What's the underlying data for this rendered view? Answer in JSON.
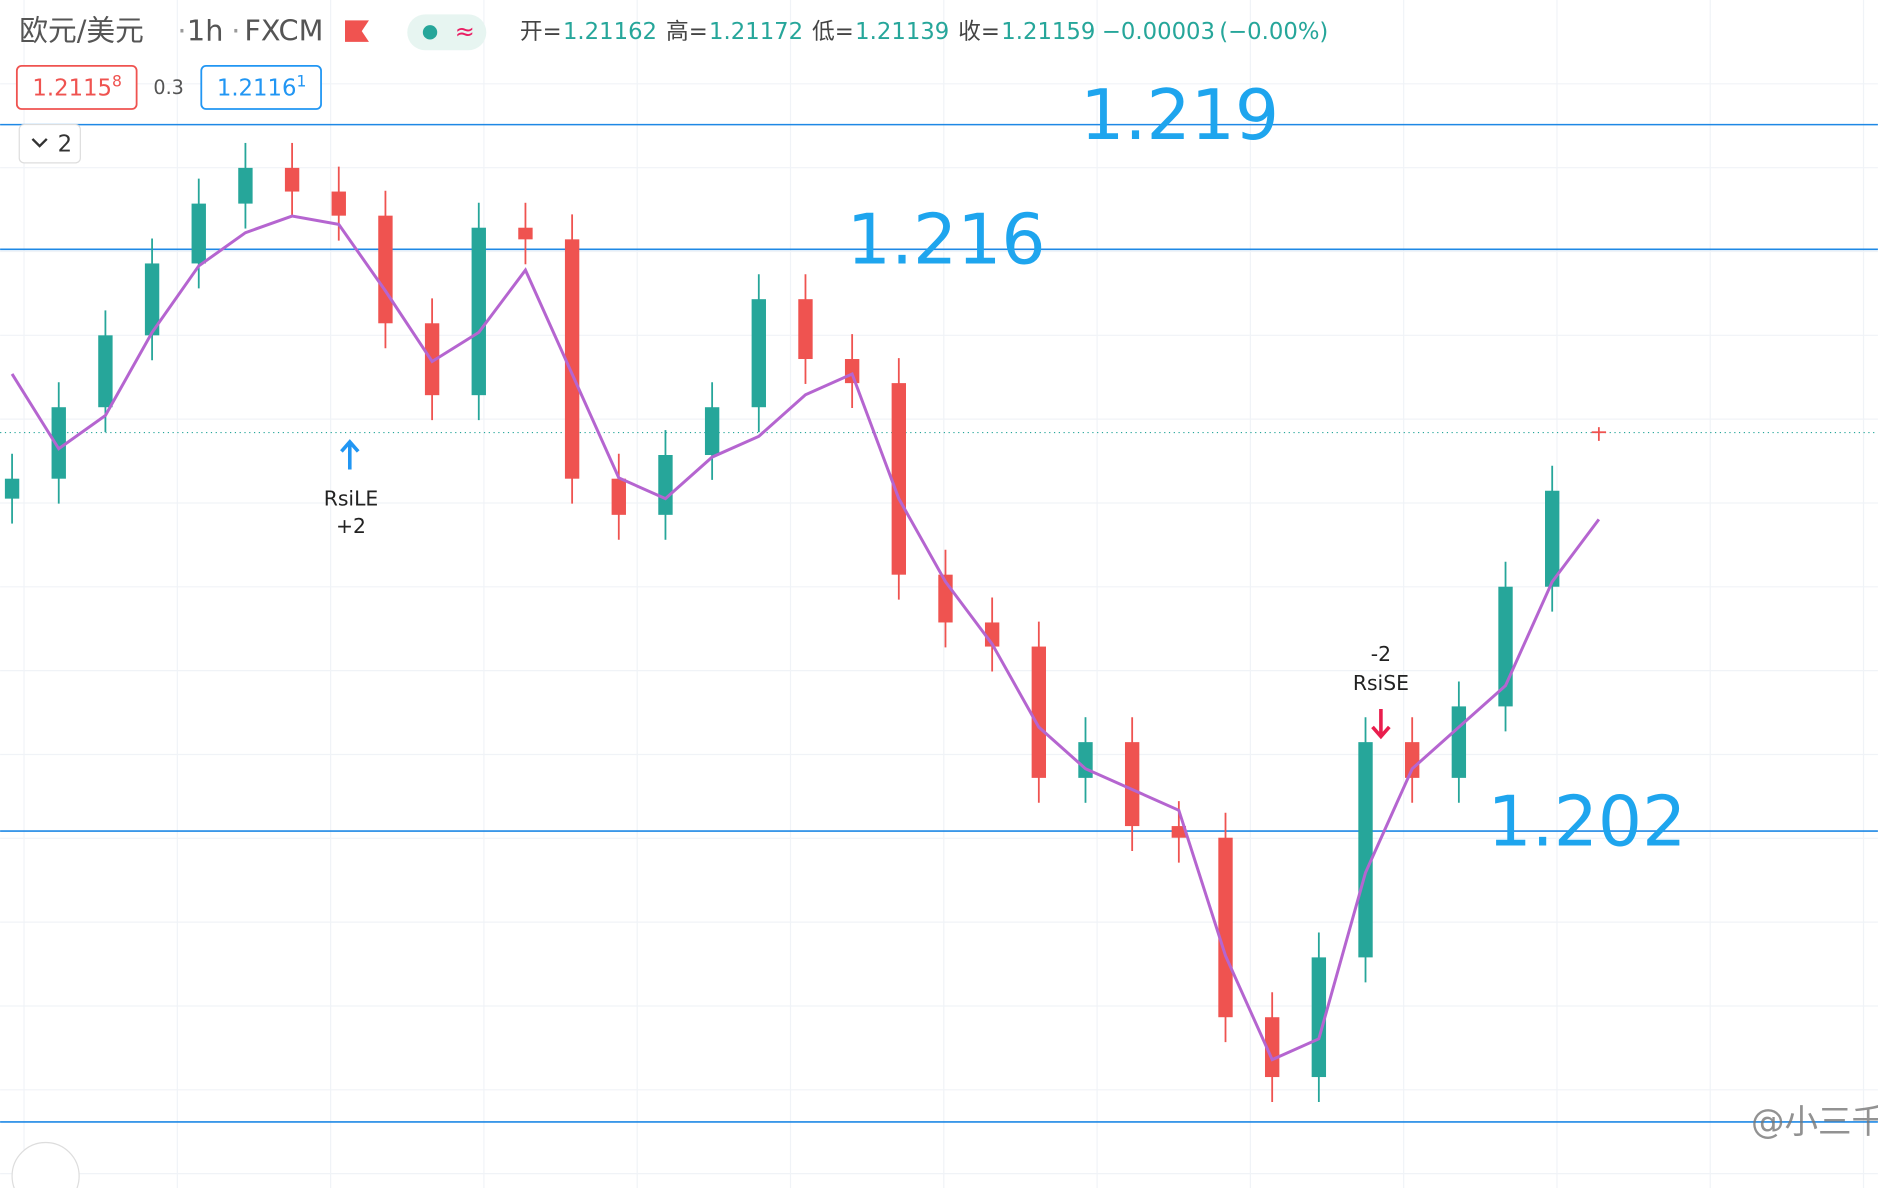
{
  "header": {
    "symbol": "欧元/美元",
    "interval": "1h",
    "exchange": "FXCM",
    "open_label": "开=",
    "high_label": "高=",
    "low_label": "低=",
    "close_label": "收=",
    "change": "−0.00003",
    "change_pct": "(−0.00%)",
    "bid": "1.2115",
    "bid_sup": "8",
    "spread": "0.3",
    "ask": "1.2116",
    "ask_sup": "1",
    "collapse": "2",
    "watermark": "@小三千"
  },
  "signals": {
    "long": "RsiLE",
    "long_qty": "+2",
    "short": "RsiSE",
    "short_qty": "-2"
  },
  "chart_data": {
    "type": "candlestick",
    "up_color": "#26a69a",
    "down_color": "#ef5350",
    "grid": true,
    "ylim": [
      1.19341,
      1.222
    ],
    "open": [
      1.21,
      1.21048,
      1.2122,
      1.21393,
      1.21566,
      1.2171,
      1.21796,
      1.21739,
      1.21681,
      1.21422,
      1.21249,
      1.21652,
      1.21624,
      1.21048,
      1.20961,
      1.21105,
      1.2122,
      1.2148,
      1.21336,
      1.21278,
      1.20817,
      1.20702,
      1.20644,
      1.20328,
      1.20414,
      1.20212,
      1.20184,
      1.19752,
      1.19608,
      1.19896,
      1.20414,
      1.20328,
      1.205,
      1.20788,
      1.21162
    ],
    "high": [
      1.21108,
      1.2128,
      1.21453,
      1.21626,
      1.2177,
      1.21856,
      1.21856,
      1.21799,
      1.21741,
      1.21482,
      1.21712,
      1.21712,
      1.21684,
      1.21108,
      1.21165,
      1.2128,
      1.2154,
      1.2154,
      1.21396,
      1.21338,
      1.20877,
      1.20762,
      1.20704,
      1.20474,
      1.20474,
      1.20272,
      1.20244,
      1.19812,
      1.19956,
      1.20474,
      1.20474,
      1.2056,
      1.20848,
      1.21079,
      1.21172
    ],
    "low": [
      1.2094,
      1.20988,
      1.2116,
      1.21333,
      1.21506,
      1.2165,
      1.21679,
      1.21621,
      1.21362,
      1.21189,
      1.21189,
      1.21564,
      1.20988,
      1.20901,
      1.20901,
      1.21045,
      1.2116,
      1.21276,
      1.21218,
      1.20757,
      1.20642,
      1.20584,
      1.20268,
      1.20268,
      1.20152,
      1.20124,
      1.19692,
      1.19548,
      1.19548,
      1.19836,
      1.20268,
      1.20268,
      1.2044,
      1.20728,
      1.21139
    ],
    "close": [
      1.21048,
      1.2122,
      1.21393,
      1.21566,
      1.2171,
      1.21796,
      1.21739,
      1.21681,
      1.21422,
      1.21249,
      1.21652,
      1.21624,
      1.21048,
      1.20961,
      1.21105,
      1.2122,
      1.2148,
      1.21336,
      1.21278,
      1.20817,
      1.20702,
      1.20644,
      1.20328,
      1.20414,
      1.20212,
      1.20184,
      1.19752,
      1.19608,
      1.19896,
      1.20414,
      1.20328,
      1.205,
      1.20788,
      1.21019,
      1.21159
    ],
    "ma": {
      "color": "#b565d0",
      "values": [
        1.213,
        1.2112,
        1.212,
        1.214,
        1.2156,
        1.2164,
        1.2168,
        1.2166,
        1.215,
        1.2133,
        1.214,
        1.2155,
        1.213,
        1.2105,
        1.21,
        1.211,
        1.2115,
        1.2125,
        1.213,
        1.21,
        1.208,
        1.2065,
        1.2045,
        1.2035,
        1.203,
        1.2025,
        1.199,
        1.1965,
        1.197,
        1.201,
        1.2035,
        1.2045,
        1.2055,
        1.208,
        1.2095
      ]
    },
    "levels": [
      {
        "value": 1.219,
        "label": "1.219"
      },
      {
        "value": 1.216,
        "label": "1.216"
      },
      {
        "value": 1.202,
        "label": "1.202"
      },
      {
        "value": 1.195
      }
    ],
    "level_color": "#1e88e5",
    "level_label_color": "#1ea5ee"
  }
}
